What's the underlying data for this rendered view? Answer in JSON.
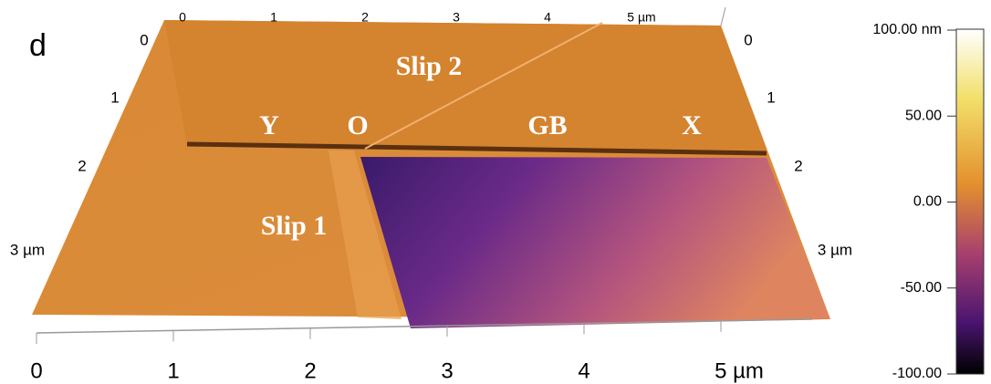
{
  "panel_label": "d",
  "annotations": [
    "Slip 2",
    "Y",
    "O",
    "GB",
    "X",
    "Slip 1"
  ],
  "front_axis_ticks": [
    "0",
    "1",
    "2",
    "3",
    "4",
    "5 µm"
  ],
  "back_axis_ticks": [
    "0",
    "1",
    "2",
    "3",
    "4",
    "5 µm"
  ],
  "left_axis_ticks": [
    "0",
    "1",
    "2",
    "3 µm"
  ],
  "right_axis_ticks": [
    "0",
    "1",
    "2",
    "3 µm"
  ],
  "colorbar": {
    "lim": [
      -100,
      100
    ],
    "ticks": [
      {
        "value": 100,
        "label": "100.00 nm"
      },
      {
        "value": 50,
        "label": "50.00"
      },
      {
        "value": 0,
        "label": "0.00"
      },
      {
        "value": -50,
        "label": "-50.00"
      },
      {
        "value": -100,
        "label": "-100.00"
      }
    ]
  }
}
